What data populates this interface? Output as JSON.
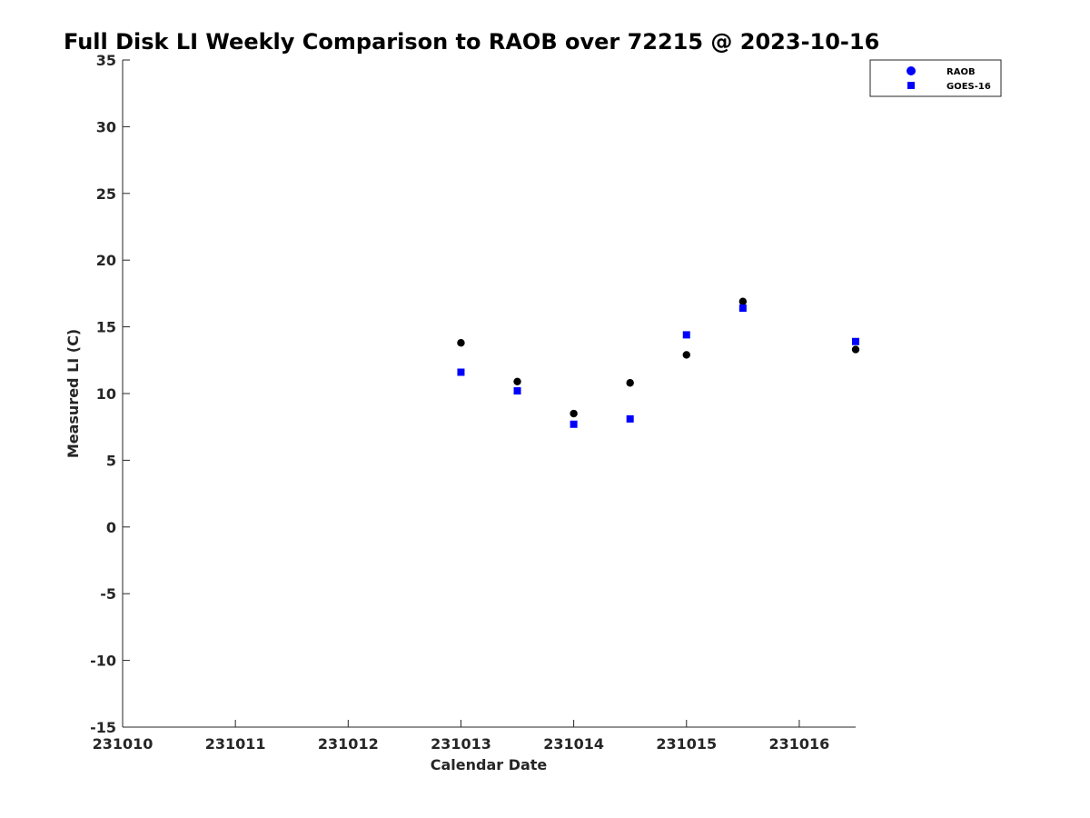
{
  "chart_data": {
    "type": "scatter",
    "title": "Full Disk LI Weekly Comparison to RAOB over 72215 @ 2023-10-16",
    "xlabel": "Calendar Date",
    "ylabel": "Measured LI (C)",
    "xlim": [
      231010,
      231016.5
    ],
    "ylim": [
      -15,
      35
    ],
    "xticks": [
      231010,
      231011,
      231012,
      231013,
      231014,
      231015,
      231016
    ],
    "xtick_labels": [
      "231010",
      "231011",
      "231012",
      "231013",
      "231014",
      "231015",
      "231016"
    ],
    "yticks": [
      -15,
      -10,
      -5,
      0,
      5,
      10,
      15,
      20,
      25,
      30,
      35
    ],
    "ytick_labels": [
      "-15",
      "-10",
      "-5",
      "0",
      "5",
      "10",
      "15",
      "20",
      "25",
      "30",
      "35"
    ],
    "grid": false,
    "legend_position": "top-right",
    "series": [
      {
        "name": "RAOB",
        "marker": "circle",
        "color": "#000000",
        "legend_color": "#0000ff",
        "x": [
          231013,
          231013.5,
          231014,
          231014.5,
          231015,
          231015.5,
          231016.5
        ],
        "y": [
          13.8,
          10.9,
          8.5,
          10.8,
          12.9,
          16.9,
          13.3
        ]
      },
      {
        "name": "GOES-16",
        "marker": "square",
        "color": "#0000ff",
        "legend_color": "#0000ff",
        "x": [
          231013,
          231013.5,
          231014,
          231014.5,
          231015,
          231015.5,
          231016.5
        ],
        "y": [
          11.6,
          10.2,
          7.7,
          8.1,
          14.4,
          16.4,
          13.9
        ]
      }
    ]
  }
}
